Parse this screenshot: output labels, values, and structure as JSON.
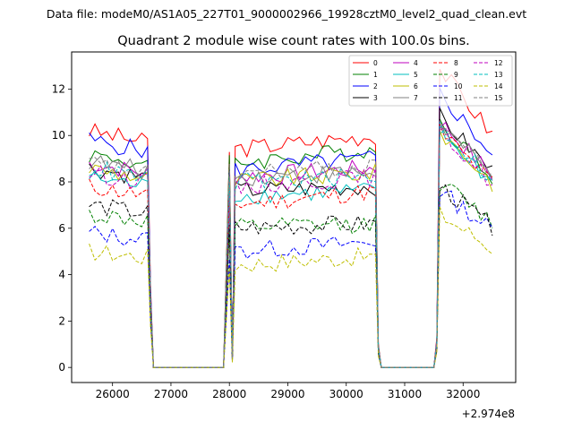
{
  "figure": {
    "suptitle": "Data file: modeM0/AS1A05_227T01_9000002966_19928cztM0_level2_quad_clean.evt",
    "offset_label": "+2.974e8"
  },
  "chart_data": {
    "type": "line",
    "title": "Quadrant 2 module wise count rates with 100.0s bins.",
    "xlabel": "",
    "ylabel": "",
    "x_offset": 297400000,
    "xlim": [
      25300,
      32900
    ],
    "ylim": [
      -0.65,
      13.6
    ],
    "xticks": [
      26000,
      27000,
      28000,
      29000,
      30000,
      31000,
      32000
    ],
    "xtick_labels": [
      "26000",
      "27000",
      "28000",
      "29000",
      "30000",
      "31000",
      "32000"
    ],
    "yticks": [
      0,
      2,
      4,
      6,
      8,
      10,
      12
    ],
    "ytick_labels": [
      "0",
      "2",
      "4",
      "6",
      "8",
      "10",
      "12"
    ],
    "grid": false,
    "legend_position": "top-right",
    "legend_columns": 4,
    "segments": [
      {
        "x_start": 25600,
        "x_end": 26600,
        "n": 11
      },
      {
        "x_start": 26700,
        "x_end": 27900,
        "n": 13,
        "zero": true
      },
      {
        "x_start": 28000,
        "x_end": 30500,
        "n": 26
      },
      {
        "x_start": 30600,
        "x_end": 31500,
        "n": 10,
        "zero": true
      },
      {
        "x_start": 31600,
        "x_end": 32500,
        "n": 10
      }
    ],
    "transitions": [
      {
        "x": 26600,
        "frac": 0.85
      },
      {
        "x": 26650,
        "frac": 0.35
      },
      {
        "x": 27950,
        "frac": 0.05
      },
      {
        "x": 28050,
        "frac": 0.8
      },
      {
        "x": 30550,
        "frac": 0.1
      },
      {
        "x": 31550,
        "frac": 0.1
      },
      {
        "x": 31600,
        "frac": 0.7
      }
    ],
    "series": [
      {
        "name": "0",
        "color": "#ff0000",
        "dash": "solid",
        "levels": [
          10.2,
          9.4,
          10.0,
          12.9
        ]
      },
      {
        "name": "1",
        "color": "#008000",
        "dash": "solid",
        "levels": [
          9.2,
          8.8,
          9.4,
          10.6
        ]
      },
      {
        "name": "2",
        "color": "#0000ff",
        "dash": "solid",
        "levels": [
          9.8,
          8.5,
          9.0,
          11.8
        ]
      },
      {
        "name": "3",
        "color": "#000000",
        "dash": "solid",
        "levels": [
          8.6,
          7.6,
          7.8,
          10.8
        ]
      },
      {
        "name": "4",
        "color": "#bf00bf",
        "dash": "solid",
        "levels": [
          8.8,
          8.2,
          8.6,
          10.6
        ]
      },
      {
        "name": "5",
        "color": "#00bfbf",
        "dash": "solid",
        "levels": [
          8.2,
          7.4,
          7.6,
          10.2
        ]
      },
      {
        "name": "6",
        "color": "#bfbf00",
        "dash": "solid",
        "levels": [
          8.6,
          8.0,
          8.4,
          10.2
        ]
      },
      {
        "name": "7",
        "color": "#808080",
        "dash": "solid",
        "levels": [
          8.9,
          8.2,
          8.4,
          10.5
        ]
      },
      {
        "name": "8",
        "color": "#ff0000",
        "dash": "dashed",
        "levels": [
          7.8,
          7.0,
          7.6,
          10.2
        ]
      },
      {
        "name": "9",
        "color": "#008000",
        "dash": "dashed",
        "levels": [
          6.6,
          6.0,
          6.2,
          8.0
        ]
      },
      {
        "name": "10",
        "color": "#0000ff",
        "dash": "dashed",
        "levels": [
          5.8,
          5.0,
          5.4,
          7.6
        ]
      },
      {
        "name": "11",
        "color": "#000000",
        "dash": "dashed",
        "levels": [
          7.0,
          6.0,
          6.2,
          7.8
        ]
      },
      {
        "name": "12",
        "color": "#bf00bf",
        "dash": "dashed",
        "levels": [
          8.4,
          7.8,
          8.2,
          10.2
        ]
      },
      {
        "name": "13",
        "color": "#00bfbf",
        "dash": "dashed",
        "levels": [
          8.6,
          8.0,
          8.2,
          10.4
        ]
      },
      {
        "name": "14",
        "color": "#bfbf00",
        "dash": "dashed",
        "levels": [
          5.0,
          4.4,
          4.8,
          6.6
        ]
      },
      {
        "name": "15",
        "color": "#808080",
        "dash": "dashed",
        "levels": [
          8.8,
          8.4,
          8.6,
          10.6
        ]
      }
    ]
  }
}
